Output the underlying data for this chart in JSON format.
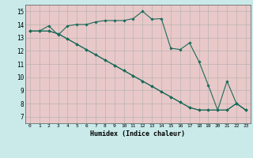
{
  "background_color": "#caeaea",
  "plot_bg_color": "#e8c8c8",
  "grid_color": "#aaaaaa",
  "line_color": "#1a6b5a",
  "xlabel": "Humidex (Indice chaleur)",
  "xlim": [
    -0.5,
    23.5
  ],
  "ylim": [
    6.5,
    15.5
  ],
  "xticks": [
    0,
    1,
    2,
    3,
    4,
    5,
    6,
    7,
    8,
    9,
    10,
    11,
    12,
    13,
    14,
    15,
    16,
    17,
    18,
    19,
    20,
    21,
    22,
    23
  ],
  "yticks": [
    7,
    8,
    9,
    10,
    11,
    12,
    13,
    14,
    15
  ],
  "series": [
    [
      13.5,
      13.5,
      13.9,
      13.2,
      13.9,
      14.0,
      14.0,
      14.2,
      14.3,
      14.3,
      14.3,
      14.45,
      15.0,
      14.4,
      14.45,
      12.2,
      12.1,
      12.6,
      11.2,
      9.4,
      7.5,
      7.5,
      8.0,
      7.5
    ],
    [
      13.5,
      13.5,
      13.5,
      13.3,
      12.9,
      12.5,
      12.1,
      11.7,
      11.3,
      10.9,
      10.5,
      10.1,
      9.7,
      9.3,
      8.9,
      8.5,
      8.1,
      7.7,
      7.5,
      7.5,
      7.5,
      9.7,
      8.0,
      7.5
    ],
    [
      13.5,
      13.5,
      13.5,
      13.3,
      12.9,
      12.5,
      12.1,
      11.7,
      11.3,
      10.9,
      10.5,
      10.1,
      9.7,
      9.3,
      8.9,
      8.5,
      8.1,
      7.7,
      7.5,
      7.5,
      7.5,
      7.5,
      8.0,
      7.5
    ]
  ]
}
